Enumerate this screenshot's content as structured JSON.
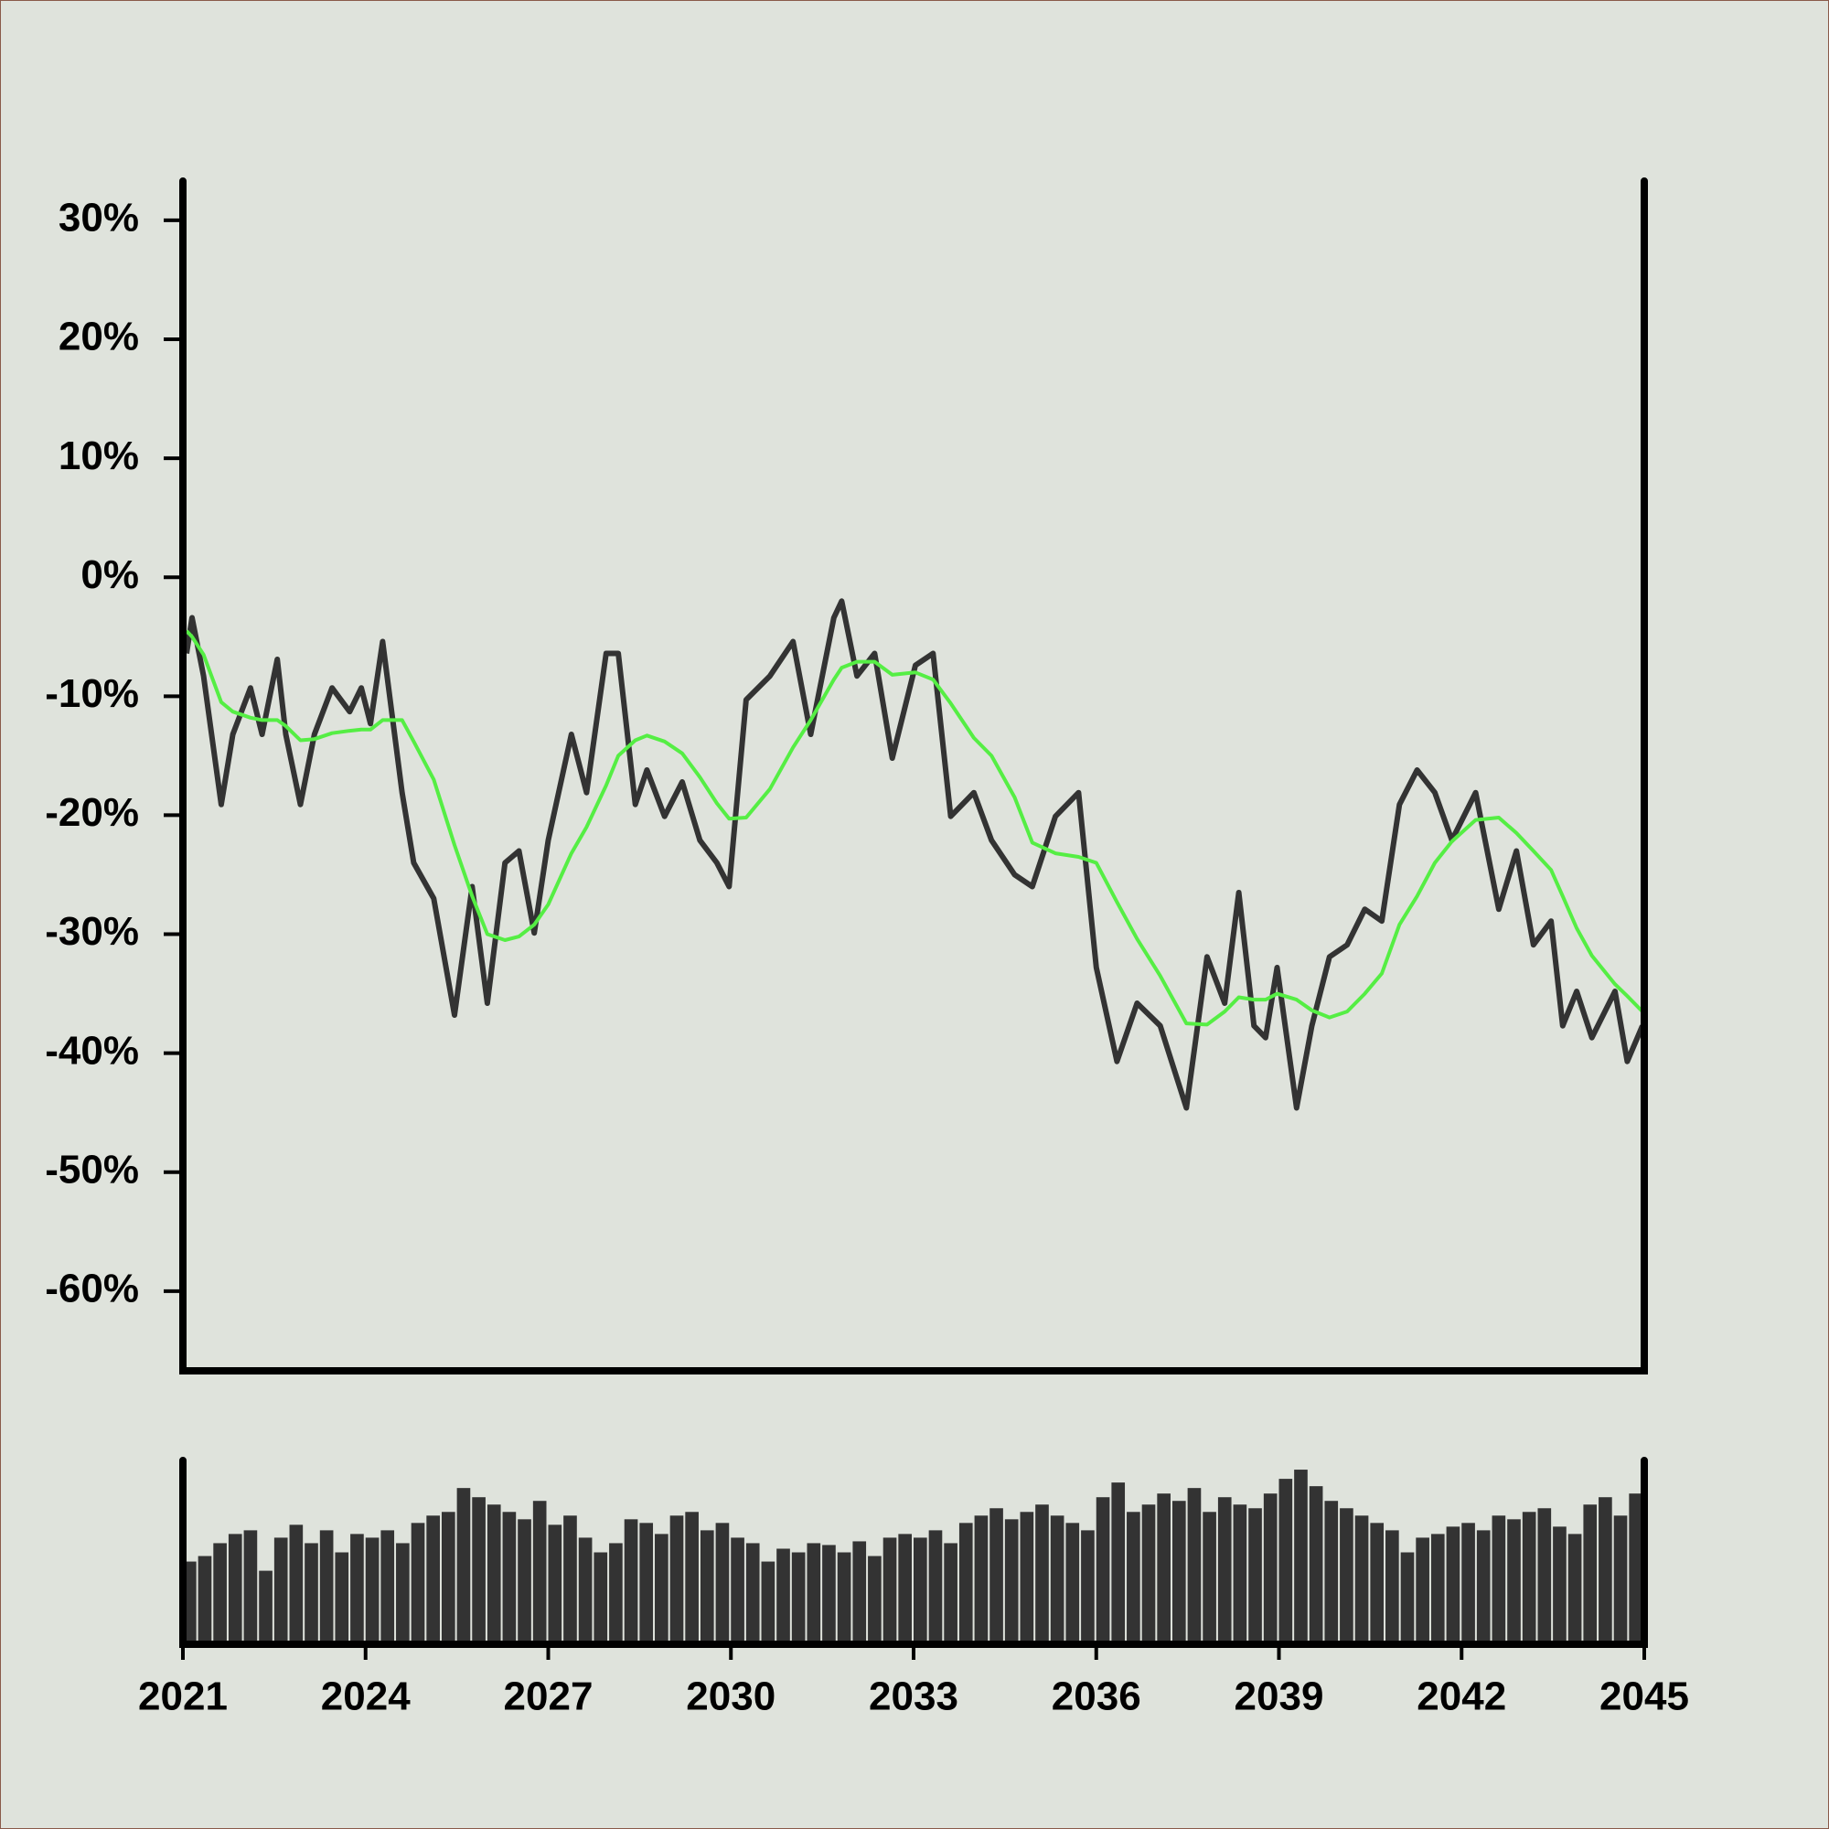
{
  "chart_data": [
    {
      "type": "line",
      "xlim": [
        2021,
        2045
      ],
      "ylim": [
        -66.7,
        33.3
      ],
      "yticks": [
        {
          "value": 30,
          "label": "30%"
        },
        {
          "value": 20,
          "label": "20%"
        },
        {
          "value": 10,
          "label": "10%"
        },
        {
          "value": 0,
          "label": "0%"
        },
        {
          "value": -10,
          "label": "-10%"
        },
        {
          "value": -20,
          "label": "-20%"
        },
        {
          "value": -30,
          "label": "-30%"
        },
        {
          "value": -40,
          "label": "-40%"
        },
        {
          "value": -50,
          "label": "-50%"
        },
        {
          "value": -60,
          "label": "-60%"
        }
      ],
      "x": [
        2021.06,
        2021.15,
        2021.34,
        2021.63,
        2021.82,
        2022.11,
        2022.3,
        2022.55,
        2022.69,
        2022.93,
        2023.16,
        2023.45,
        2023.74,
        2023.93,
        2024.08,
        2024.28,
        2024.6,
        2024.79,
        2025.12,
        2025.46,
        2025.75,
        2026.0,
        2026.29,
        2026.52,
        2026.77,
        2027.0,
        2027.38,
        2027.63,
        2027.95,
        2028.15,
        2028.43,
        2028.62,
        2028.91,
        2029.2,
        2029.49,
        2029.77,
        2029.97,
        2030.25,
        2030.64,
        2031.02,
        2031.31,
        2031.69,
        2031.82,
        2032.07,
        2032.36,
        2032.65,
        2033.03,
        2033.32,
        2033.61,
        2033.99,
        2034.28,
        2034.66,
        2034.95,
        2035.33,
        2035.71,
        2036.0,
        2036.34,
        2036.67,
        2037.05,
        2037.48,
        2037.82,
        2038.11,
        2038.34,
        2038.59,
        2038.78,
        2038.97,
        2039.29,
        2039.54,
        2039.83,
        2040.12,
        2040.41,
        2040.69,
        2040.98,
        2041.27,
        2041.56,
        2041.84,
        2042.23,
        2042.61,
        2042.9,
        2043.18,
        2043.47,
        2043.66,
        2043.89,
        2044.14,
        2044.52,
        2044.72,
        2044.97
      ],
      "series": [
        {
          "color": "#333333",
          "width": 6,
          "values": [
            -6.4,
            -3.4,
            -8.3,
            -19.1,
            -13.2,
            -9.3,
            -13.2,
            -6.9,
            -13.2,
            -19.1,
            -13.2,
            -9.3,
            -11.3,
            -9.3,
            -12.3,
            -5.4,
            -18.1,
            -24.0,
            -27.0,
            -36.8,
            -26.0,
            -35.8,
            -24.0,
            -23.0,
            -29.9,
            -22.1,
            -13.2,
            -18.1,
            -6.4,
            -6.4,
            -19.1,
            -16.2,
            -20.1,
            -17.2,
            -22.1,
            -24.0,
            -26.0,
            -10.3,
            -8.3,
            -5.4,
            -13.2,
            -3.4,
            -2.0,
            -8.3,
            -6.4,
            -15.2,
            -7.4,
            -6.4,
            -20.1,
            -18.1,
            -22.1,
            -25.0,
            -26.0,
            -20.1,
            -18.1,
            -32.8,
            -40.7,
            -35.8,
            -37.7,
            -44.6,
            -31.9,
            -35.8,
            -26.5,
            -37.7,
            -38.7,
            -32.8,
            -44.6,
            -37.7,
            -31.9,
            -30.9,
            -27.9,
            -28.9,
            -19.1,
            -16.2,
            -18.1,
            -22.1,
            -18.1,
            -27.9,
            -23.0,
            -30.9,
            -28.9,
            -37.7,
            -34.8,
            -38.7,
            -34.8,
            -40.7,
            -37.7
          ]
        },
        {
          "color": "#55ee44",
          "width": 4,
          "values": [
            -4.5,
            -5.0,
            -6.5,
            -10.5,
            -11.3,
            -11.8,
            -12.0,
            -12.0,
            -12.5,
            -13.7,
            -13.6,
            -13.1,
            -12.9,
            -12.8,
            -12.8,
            -12.0,
            -12.0,
            -13.8,
            -17.0,
            -22.5,
            -26.8,
            -30.0,
            -30.5,
            -30.2,
            -29.2,
            -27.5,
            -23.2,
            -21.0,
            -17.5,
            -15.0,
            -13.7,
            -13.3,
            -13.8,
            -14.8,
            -16.8,
            -19.0,
            -20.3,
            -20.2,
            -17.8,
            -14.3,
            -12.0,
            -8.6,
            -7.6,
            -7.1,
            -7.1,
            -8.2,
            -8.0,
            -8.6,
            -10.6,
            -13.5,
            -15.0,
            -18.5,
            -22.3,
            -23.2,
            -23.5,
            -24.0,
            -27.3,
            -30.4,
            -33.5,
            -37.5,
            -37.6,
            -36.5,
            -35.3,
            -35.5,
            -35.5,
            -35.0,
            -35.5,
            -36.4,
            -37.0,
            -36.5,
            -35.0,
            -33.3,
            -29.2,
            -26.8,
            -24.0,
            -22.2,
            -20.4,
            -20.2,
            -21.5,
            -23.0,
            -24.6,
            -26.8,
            -29.5,
            -31.8,
            -34.2,
            -35.2,
            -36.5
          ]
        }
      ]
    },
    {
      "type": "bar",
      "color": "#333333",
      "xlim": [
        2021,
        2045
      ],
      "ylim": [
        0,
        100
      ],
      "xticks": [
        2021,
        2024,
        2027,
        2030,
        2033,
        2036,
        2039,
        2042,
        2045
      ],
      "x": [
        2021,
        2021.25,
        2021.5,
        2021.75,
        2022,
        2022.25,
        2022.5,
        2022.75,
        2023,
        2023.25,
        2023.5,
        2023.75,
        2024,
        2024.25,
        2024.5,
        2024.75,
        2025,
        2025.25,
        2025.5,
        2025.75,
        2026,
        2026.25,
        2026.5,
        2026.75,
        2027,
        2027.25,
        2027.5,
        2027.75,
        2028,
        2028.25,
        2028.5,
        2028.75,
        2029,
        2029.25,
        2029.5,
        2029.75,
        2030,
        2030.25,
        2030.5,
        2030.75,
        2031,
        2031.25,
        2031.5,
        2031.75,
        2032,
        2032.25,
        2032.5,
        2032.75,
        2033,
        2033.25,
        2033.5,
        2033.75,
        2034,
        2034.25,
        2034.5,
        2034.75,
        2035,
        2035.25,
        2035.5,
        2035.75,
        2036,
        2036.25,
        2036.5,
        2036.75,
        2037,
        2037.25,
        2037.5,
        2037.75,
        2038,
        2038.25,
        2038.5,
        2038.75,
        2039,
        2039.25,
        2039.5,
        2039.75,
        2040,
        2040.25,
        2040.5,
        2040.75,
        2041,
        2041.25,
        2041.5,
        2041.75,
        2042,
        2042.25,
        2042.5,
        2042.75,
        2043,
        2043.25,
        2043.5,
        2043.75,
        2044,
        2044.25,
        2044.5,
        2044.75
      ],
      "values": [
        45,
        48,
        55,
        60,
        62,
        40,
        58,
        65,
        55,
        62,
        50,
        60,
        58,
        62,
        55,
        66,
        70,
        72,
        85,
        80,
        76,
        72,
        68,
        78,
        65,
        70,
        58,
        50,
        55,
        68,
        66,
        60,
        70,
        72,
        62,
        66,
        58,
        55,
        45,
        52,
        50,
        55,
        54,
        50,
        56,
        48,
        58,
        60,
        58,
        62,
        55,
        66,
        70,
        74,
        68,
        72,
        76,
        70,
        66,
        62,
        80,
        88,
        72,
        76,
        82,
        78,
        85,
        72,
        80,
        76,
        74,
        82,
        90,
        95,
        86,
        78,
        74,
        70,
        66,
        62,
        50,
        58,
        60,
        64,
        66,
        62,
        70,
        68,
        72,
        74,
        64,
        60,
        76,
        80,
        70,
        82
      ]
    }
  ]
}
